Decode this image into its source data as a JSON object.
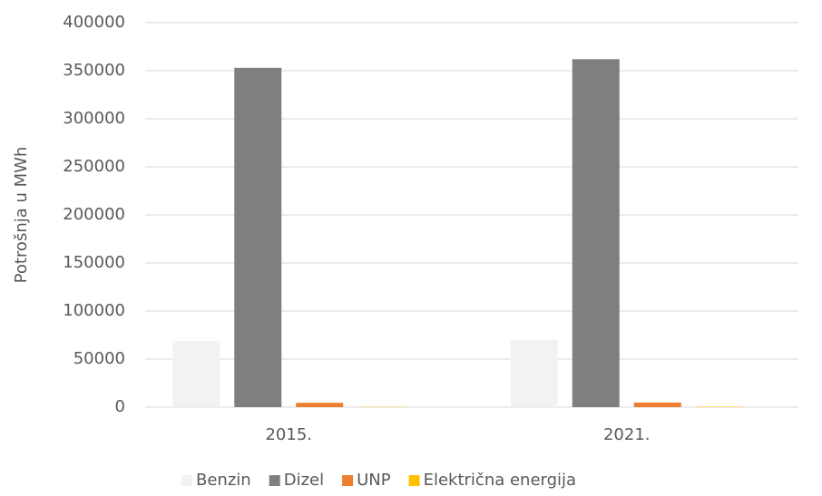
{
  "chart_data": {
    "type": "bar",
    "ylabel": "Potrošnja u MWh",
    "categories": [
      "2015.",
      "2021."
    ],
    "series": [
      {
        "name": "Benzin",
        "color": "#f2f2f2",
        "values": [
          69000,
          70000
        ]
      },
      {
        "name": "Dizel",
        "color": "#7f7f7f",
        "values": [
          353000,
          362000
        ]
      },
      {
        "name": "UNP",
        "color": "#ed7d31",
        "values": [
          4500,
          4800
        ]
      },
      {
        "name": "Električna energija",
        "color": "#ffc000",
        "values": [
          300,
          500
        ]
      }
    ],
    "ylim": [
      0,
      400000
    ],
    "yticks": [
      0,
      50000,
      100000,
      150000,
      200000,
      250000,
      300000,
      350000,
      400000
    ],
    "grid": true,
    "legend": "bottom"
  }
}
